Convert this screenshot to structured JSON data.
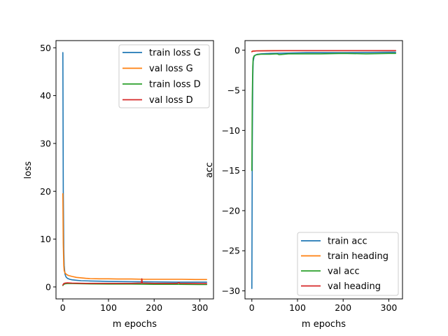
{
  "chart_data": [
    {
      "type": "line",
      "xlabel": "m epochs",
      "ylabel": "loss",
      "xlim": [
        -15,
        330
      ],
      "ylim": [
        -2.5,
        51.5
      ],
      "xticks": [
        0,
        100,
        200,
        300
      ],
      "yticks": [
        0,
        10,
        20,
        30,
        40,
        50
      ],
      "legend_position": "top-right",
      "grid": false,
      "series": [
        {
          "name": "train loss G",
          "color": "#1f77b4",
          "x": [
            0,
            1,
            2,
            3,
            4,
            5,
            7,
            10,
            15,
            20,
            30,
            40,
            60,
            80,
            100,
            150,
            200,
            250,
            300,
            315
          ],
          "values": [
            49.0,
            20.0,
            8.0,
            4.5,
            3.3,
            2.6,
            2.1,
            1.8,
            1.6,
            1.5,
            1.4,
            1.3,
            1.25,
            1.2,
            1.15,
            1.1,
            1.05,
            1.0,
            1.0,
            1.0
          ]
        },
        {
          "name": "val loss G",
          "color": "#ff7f0e",
          "x": [
            0,
            1,
            2,
            3,
            5,
            8,
            12,
            20,
            30,
            40,
            50,
            60,
            80,
            100,
            120,
            150,
            180,
            200,
            230,
            260,
            290,
            315
          ],
          "values": [
            19.5,
            9.0,
            4.5,
            3.4,
            2.9,
            2.6,
            2.4,
            2.2,
            2.0,
            1.9,
            1.8,
            1.75,
            1.7,
            1.7,
            1.65,
            1.65,
            1.6,
            1.6,
            1.6,
            1.6,
            1.55,
            1.55
          ]
        },
        {
          "name": "train loss D",
          "color": "#2ca02c",
          "x": [
            0,
            2,
            5,
            10,
            20,
            50,
            100,
            150,
            200,
            250,
            300,
            315
          ],
          "values": [
            0.3,
            0.55,
            0.65,
            0.7,
            0.7,
            0.65,
            0.6,
            0.6,
            0.55,
            0.55,
            0.5,
            0.5
          ]
        },
        {
          "name": "val loss D",
          "color": "#d62728",
          "x": [
            0,
            2,
            5,
            10,
            20,
            50,
            100,
            150,
            172,
            173,
            174,
            200,
            250,
            255,
            256,
            300,
            315
          ],
          "values": [
            0.4,
            0.7,
            0.8,
            0.85,
            0.8,
            0.75,
            0.75,
            0.75,
            0.8,
            1.7,
            0.8,
            0.75,
            0.75,
            0.9,
            0.75,
            0.7,
            0.7
          ]
        }
      ]
    },
    {
      "type": "line",
      "xlabel": "m epochs",
      "ylabel": "acc",
      "xlim": [
        -15,
        330
      ],
      "ylim": [
        -31,
        1.2
      ],
      "xticks": [
        0,
        100,
        200,
        300
      ],
      "yticks": [
        0,
        -5,
        -10,
        -15,
        -20,
        -25,
        -30
      ],
      "legend_position": "bottom-right",
      "grid": false,
      "series": [
        {
          "name": "train acc",
          "color": "#1f77b4",
          "x": [
            0,
            1,
            2,
            3,
            5,
            8,
            12,
            20,
            40,
            80,
            120,
            200,
            300,
            315
          ],
          "values": [
            -29.7,
            -12.0,
            -3.5,
            -1.4,
            -0.8,
            -0.6,
            -0.5,
            -0.45,
            -0.4,
            -0.35,
            -0.3,
            -0.3,
            -0.25,
            -0.25
          ]
        },
        {
          "name": "train heading",
          "color": "#ff7f0e",
          "x": [
            0,
            2,
            5,
            10,
            50,
            100,
            200,
            300,
            315
          ],
          "values": [
            -0.15,
            -0.1,
            -0.1,
            -0.08,
            -0.05,
            -0.05,
            -0.05,
            -0.05,
            -0.05
          ]
        },
        {
          "name": "val acc",
          "color": "#2ca02c",
          "x": [
            0,
            1,
            2,
            3,
            5,
            8,
            12,
            20,
            30,
            40,
            55,
            60,
            80,
            100,
            150,
            200,
            250,
            300,
            315
          ],
          "values": [
            -15.0,
            -6.0,
            -2.0,
            -1.0,
            -0.7,
            -0.6,
            -0.55,
            -0.5,
            -0.5,
            -0.5,
            -0.45,
            -0.55,
            -0.45,
            -0.45,
            -0.45,
            -0.4,
            -0.45,
            -0.4,
            -0.4
          ]
        },
        {
          "name": "val heading",
          "color": "#d62728",
          "x": [
            0,
            2,
            5,
            10,
            50,
            100,
            200,
            300,
            315
          ],
          "values": [
            -0.2,
            -0.12,
            -0.1,
            -0.08,
            -0.06,
            -0.05,
            -0.05,
            -0.05,
            -0.05
          ]
        }
      ]
    }
  ]
}
